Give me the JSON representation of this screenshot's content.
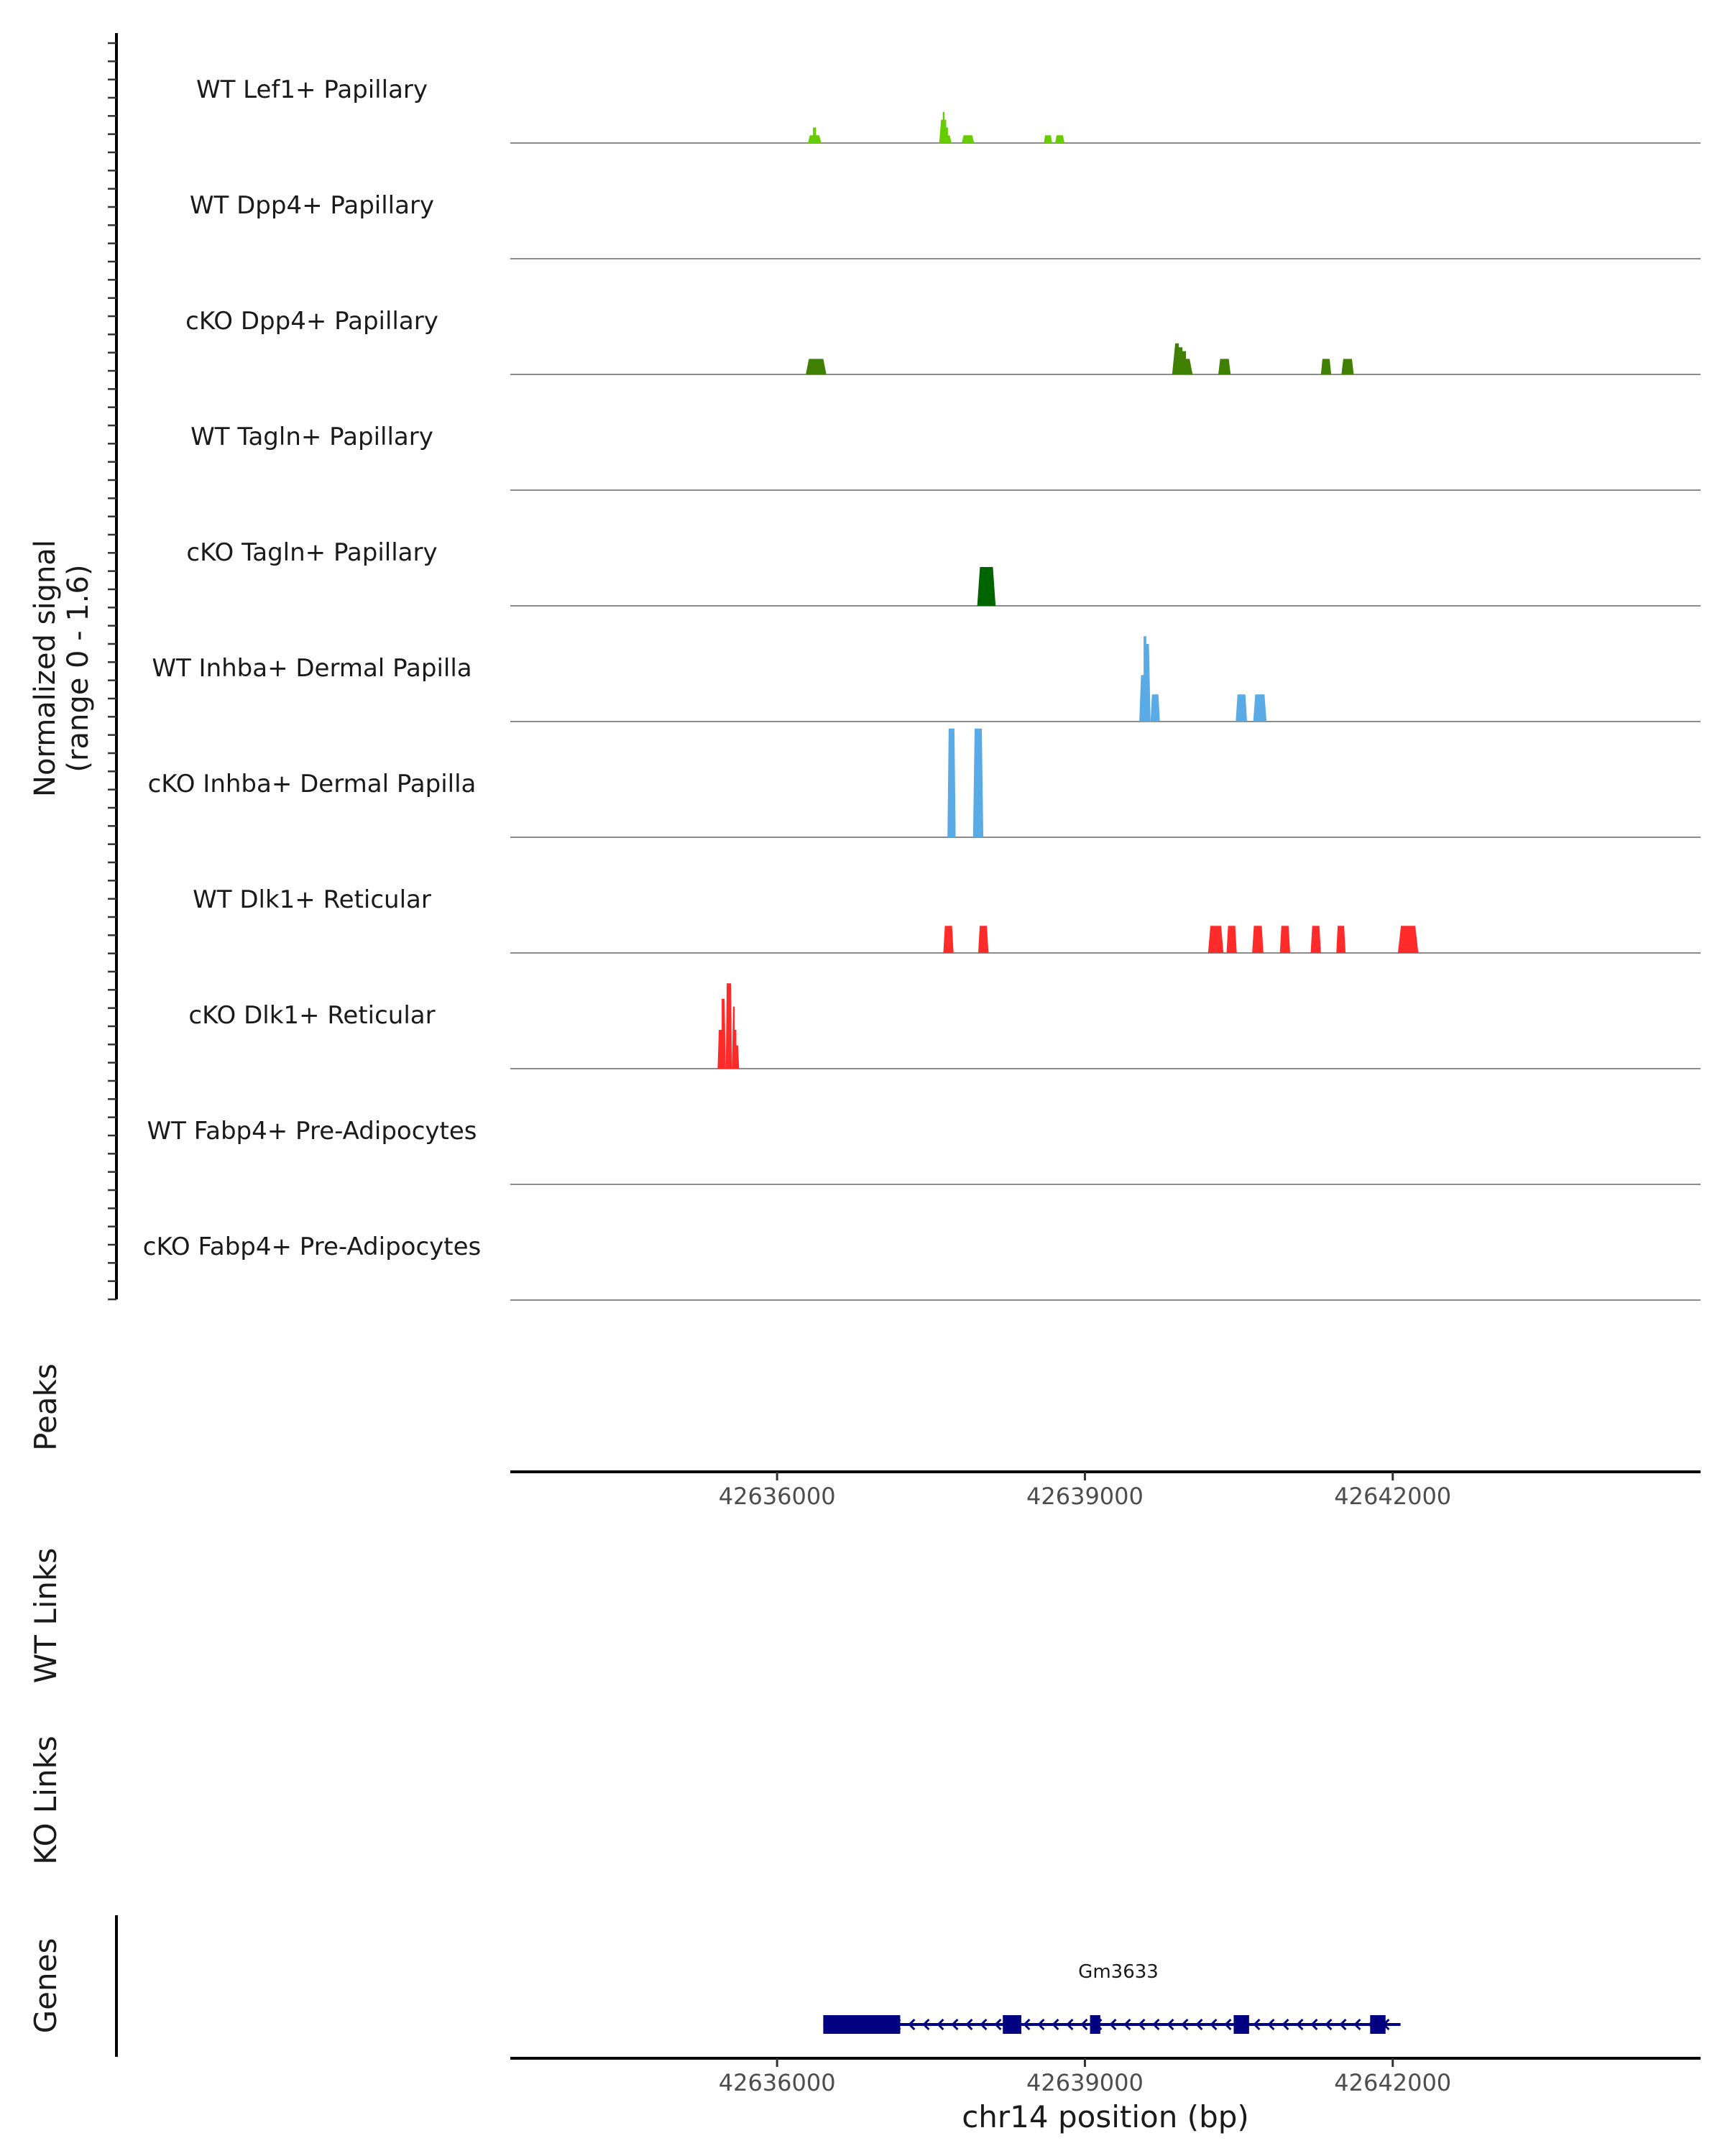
{
  "chart_data": {
    "type": "genome-track",
    "signal_track": {
      "ylabel_line1": "Normalized signal",
      "ylabel_line2": "(range 0 - 1.6)",
      "yrange": [
        0,
        1.6
      ],
      "tracks": [
        {
          "name": "WT Lef1+ Papillary",
          "color": "#66cc00",
          "peaks": [
            [
              42636300,
              42636430,
              [
                0.1,
                0.2,
                0.1
              ]
            ],
            [
              42637580,
              42637700,
              [
                0.3,
                0.4,
                0.3,
                0.2,
                0.1
              ]
            ],
            [
              42637800,
              42637920,
              [
                0.1,
                0.1
              ]
            ],
            [
              42638600,
              42638680,
              [
                0.1
              ]
            ],
            [
              42638710,
              42638800,
              [
                0.1
              ]
            ]
          ]
        },
        {
          "name": "WT Dpp4+ Papillary",
          "color": "#4d8a00",
          "peaks": []
        },
        {
          "name": "cKO Dpp4+ Papillary",
          "color": "#3f8000",
          "peaks": [
            [
              42636280,
              42636480,
              [
                0.2
              ]
            ],
            [
              42639850,
              42640050,
              [
                0.4,
                0.35,
                0.3,
                0.2
              ]
            ],
            [
              42640300,
              42640420,
              [
                0.2
              ]
            ],
            [
              42641300,
              42641400,
              [
                0.2
              ]
            ],
            [
              42641500,
              42641620,
              [
                0.2
              ]
            ]
          ]
        },
        {
          "name": "WT Tagln+ Papillary",
          "color": "#006400",
          "peaks": []
        },
        {
          "name": "cKO Tagln+ Papillary",
          "color": "#006400",
          "peaks": [
            [
              42637950,
              42638130,
              [
                0.5
              ]
            ]
          ]
        },
        {
          "name": "WT Inhba+ Dermal Papilla",
          "color": "#5aaae6",
          "peaks": [
            [
              42639530,
              42639640,
              [
                0.6,
                1.1,
                1.0
              ]
            ],
            [
              42639640,
              42639730,
              [
                0.35
              ]
            ],
            [
              42640470,
              42640580,
              [
                0.35
              ]
            ],
            [
              42640640,
              42640770,
              [
                0.35
              ]
            ]
          ]
        },
        {
          "name": "cKO Inhba+ Dermal Papilla",
          "color": "#5aaae6",
          "peaks": [
            [
              42637660,
              42637740,
              [
                1.4
              ]
            ],
            [
              42637910,
              42638010,
              [
                1.4
              ]
            ]
          ]
        },
        {
          "name": "WT Dlk1+ Reticular",
          "color": "#ff2a2a",
          "peaks": [
            [
              42637620,
              42637720,
              [
                0.35
              ]
            ],
            [
              42637960,
              42638060,
              [
                0.35
              ]
            ],
            [
              42640200,
              42640350,
              [
                0.35
              ]
            ],
            [
              42640380,
              42640480,
              [
                0.35
              ]
            ],
            [
              42640630,
              42640740,
              [
                0.35
              ]
            ],
            [
              42640900,
              42641000,
              [
                0.35
              ]
            ],
            [
              42641200,
              42641300,
              [
                0.35
              ]
            ],
            [
              42641450,
              42641540,
              [
                0.35
              ]
            ],
            [
              42642050,
              42642250,
              [
                0.35
              ]
            ]
          ]
        },
        {
          "name": "cKO Dlk1+ Reticular",
          "color": "#ff2a2a",
          "peaks": [
            [
              42635420,
              42635500,
              [
                0.5,
                0.9
              ]
            ],
            [
              42635500,
              42635560,
              [
                1.1
              ]
            ],
            [
              42635560,
              42635630,
              [
                0.8,
                0.5,
                0.3
              ]
            ]
          ]
        },
        {
          "name": "WT Fabp4+ Pre-Adipocytes",
          "color": "#cc0000",
          "peaks": []
        },
        {
          "name": "cKO Fabp4+ Pre-Adipocytes",
          "color": "#cc0000",
          "peaks": []
        }
      ]
    },
    "peaks_track": {
      "label": "Peaks"
    },
    "x_axis": {
      "range": [
        42633400,
        42645000
      ],
      "ticks": [
        42636000,
        42639000,
        42642000
      ],
      "tick_labels": [
        "42636000",
        "42639000",
        "42642000"
      ],
      "xlabel": "chr14 position (bp)"
    },
    "links_tracks": [
      {
        "label": "WT Links"
      },
      {
        "label": "KO Links"
      }
    ],
    "genes_track": {
      "label": "Genes",
      "gene": {
        "name": "Gm3633",
        "color": "#000080",
        "start": 42636450,
        "end": 42641950,
        "strand": "-",
        "exons": [
          [
            42636450,
            42637200
          ],
          [
            42638200,
            42638380
          ],
          [
            42639050,
            42639150
          ],
          [
            42640450,
            42640600
          ],
          [
            42641780,
            42641930
          ]
        ]
      }
    }
  }
}
